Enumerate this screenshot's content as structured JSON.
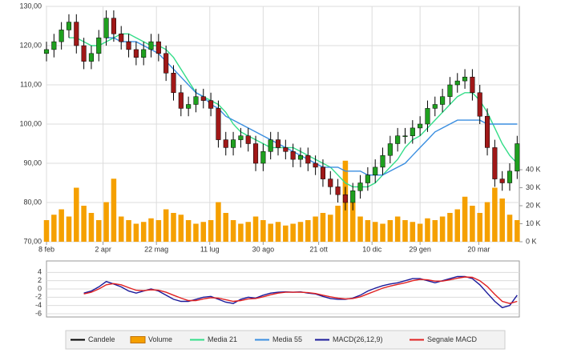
{
  "chart_data": [
    {
      "type": "candlestick",
      "x": [
        0,
        7,
        14,
        21,
        28,
        35,
        42,
        49,
        56,
        63,
        70,
        77,
        84,
        91,
        98,
        105,
        112,
        119,
        126,
        133,
        140,
        147,
        154,
        161,
        168,
        175,
        182,
        189,
        196,
        203,
        210,
        217,
        224,
        231,
        238,
        245,
        252,
        259,
        266,
        273,
        280,
        287,
        294,
        301,
        308,
        315,
        322,
        329,
        336,
        343,
        350,
        357,
        364,
        371,
        378,
        385,
        392,
        399,
        406,
        413,
        420,
        427,
        434,
        441
      ],
      "xlim": [
        0,
        443
      ],
      "xticks": [
        {
          "value": 0,
          "label": "8 feb"
        },
        {
          "value": 53,
          "label": "2 apr"
        },
        {
          "value": 103,
          "label": "22 mag"
        },
        {
          "value": 153,
          "label": "11 lug"
        },
        {
          "value": 203,
          "label": "30 ago"
        },
        {
          "value": 255,
          "label": "21 ott"
        },
        {
          "value": 305,
          "label": "10 dic"
        },
        {
          "value": 350,
          "label": "29 gen"
        },
        {
          "value": 405,
          "label": "20 mar"
        }
      ],
      "ylim": [
        70,
        130
      ],
      "yticks": [
        {
          "value": 70,
          "label": "70,00"
        },
        {
          "value": 80,
          "label": "80,00"
        },
        {
          "value": 90,
          "label": "90,00"
        },
        {
          "value": 100,
          "label": "100,00"
        },
        {
          "value": 110,
          "label": "110,00"
        },
        {
          "value": 120,
          "label": "120,00"
        },
        {
          "value": 130,
          "label": "130,00"
        }
      ],
      "y2lim": [
        0,
        130.7
      ],
      "y2ticks": [
        {
          "value": 0,
          "label": "0 K"
        },
        {
          "value": 10,
          "label": "10 K"
        },
        {
          "value": 20,
          "label": "20 K"
        },
        {
          "value": 30,
          "label": "30 K"
        },
        {
          "value": 40,
          "label": "40 K"
        }
      ],
      "grid": true,
      "series": [
        {
          "name": "Candele",
          "type": "candlestick",
          "color": "#000000",
          "up_color": "#1fa01f",
          "down_color": "#a01818",
          "open": [
            118,
            119,
            121,
            124,
            126,
            120,
            116,
            118,
            122,
            127,
            123,
            121,
            119,
            117,
            119,
            121,
            118,
            113,
            108,
            104,
            105,
            107,
            106,
            104,
            96,
            94,
            96,
            97,
            95,
            90,
            93,
            96,
            94,
            93,
            91,
            92,
            90,
            89,
            86,
            84,
            82,
            80,
            83,
            85,
            87,
            89,
            92,
            95,
            97,
            97,
            99,
            100,
            104,
            105,
            107,
            110,
            111,
            112,
            108,
            102,
            94,
            86,
            85,
            88
          ],
          "high": [
            121,
            123,
            126,
            128,
            128,
            122,
            120,
            124,
            129,
            129,
            125,
            123,
            121,
            121,
            123,
            123,
            120,
            115,
            110,
            107,
            109,
            109,
            108,
            106,
            98,
            98,
            99,
            99,
            97,
            95,
            98,
            98,
            96,
            95,
            94,
            94,
            92,
            91,
            88,
            86,
            84,
            85,
            87,
            89,
            91,
            94,
            97,
            99,
            99,
            101,
            102,
            106,
            107,
            109,
            112,
            113,
            114,
            114,
            110,
            104,
            96,
            88,
            90,
            97
          ],
          "low": [
            116,
            117,
            119,
            122,
            118,
            114,
            114,
            116,
            120,
            121,
            119,
            117,
            115,
            115,
            117,
            116,
            111,
            106,
            102,
            102,
            103,
            104,
            102,
            94,
            92,
            92,
            94,
            93,
            88,
            88,
            91,
            92,
            91,
            89,
            89,
            88,
            87,
            84,
            82,
            80,
            78,
            78,
            81,
            83,
            85,
            87,
            90,
            93,
            95,
            95,
            97,
            98,
            102,
            103,
            105,
            108,
            109,
            106,
            100,
            92,
            84,
            83,
            83,
            86
          ],
          "close": [
            119,
            121,
            124,
            126,
            120,
            116,
            118,
            122,
            127,
            123,
            121,
            119,
            117,
            119,
            121,
            118,
            113,
            108,
            104,
            105,
            107,
            106,
            104,
            96,
            94,
            96,
            97,
            95,
            90,
            93,
            96,
            94,
            93,
            91,
            92,
            90,
            89,
            86,
            84,
            82,
            80,
            83,
            85,
            87,
            89,
            92,
            95,
            97,
            97,
            99,
            100,
            104,
            105,
            107,
            110,
            111,
            112,
            108,
            102,
            94,
            86,
            85,
            88,
            95
          ]
        },
        {
          "name": "Volume",
          "type": "bar",
          "axis": "y2",
          "color": "#f5a000",
          "values": [
            12,
            15,
            18,
            14,
            30,
            20,
            16,
            12,
            22,
            35,
            14,
            12,
            10,
            11,
            13,
            12,
            18,
            16,
            15,
            12,
            10,
            11,
            12,
            22,
            16,
            12,
            10,
            11,
            14,
            12,
            10,
            11,
            9,
            10,
            11,
            12,
            14,
            16,
            15,
            20,
            45,
            22,
            14,
            12,
            11,
            10,
            12,
            14,
            12,
            11,
            10,
            13,
            12,
            14,
            16,
            18,
            25,
            20,
            16,
            22,
            30,
            24,
            15,
            12
          ]
        },
        {
          "name": "Media 21",
          "type": "line",
          "color": "#33dd88",
          "values": [
            null,
            null,
            null,
            122,
            122,
            121,
            120,
            120,
            121,
            122,
            123,
            123,
            122,
            121,
            120,
            120,
            119,
            117,
            114,
            111,
            108,
            107,
            106,
            105,
            103,
            100,
            98,
            97,
            96,
            95,
            94,
            94,
            94,
            94,
            93,
            92,
            91,
            90,
            89,
            87,
            85,
            84,
            84,
            84,
            85,
            87,
            89,
            91,
            94,
            96,
            97,
            99,
            101,
            103,
            105,
            107,
            108,
            108,
            106,
            103,
            99,
            95,
            92,
            90
          ]
        },
        {
          "name": "Media 55",
          "type": "line",
          "color": "#3a8ee0",
          "values": [
            null,
            null,
            null,
            null,
            null,
            null,
            null,
            null,
            122,
            122,
            121,
            121,
            121,
            120,
            119,
            118,
            116,
            114,
            112,
            110,
            108,
            107,
            105,
            104,
            102,
            101,
            100,
            99,
            98,
            97,
            96,
            95,
            94,
            93,
            92,
            91,
            90,
            89,
            89,
            89,
            88,
            88,
            88,
            87,
            87,
            87,
            88,
            89,
            90,
            92,
            94,
            96,
            98,
            99,
            100,
            101,
            101,
            101,
            101,
            100,
            100,
            100,
            100,
            100
          ]
        }
      ]
    },
    {
      "type": "line",
      "x": [
        0,
        7,
        14,
        21,
        28,
        35,
        42,
        49,
        56,
        63,
        70,
        77,
        84,
        91,
        98,
        105,
        112,
        119,
        126,
        133,
        140,
        147,
        154,
        161,
        168,
        175,
        182,
        189,
        196,
        203,
        210,
        217,
        224,
        231,
        238,
        245,
        252,
        259,
        266,
        273,
        280,
        287,
        294,
        301,
        308,
        315,
        322,
        329,
        336,
        343,
        350,
        357,
        364,
        371,
        378,
        385,
        392,
        399,
        406,
        413,
        420,
        427,
        434,
        441
      ],
      "xlim": [
        0,
        443
      ],
      "ylim": [
        -6,
        6
      ],
      "yticks": [
        4,
        2,
        0,
        -2,
        -4,
        -6
      ],
      "series": [
        {
          "name": "MACD(26,12,9)",
          "color": "#1a1a9a",
          "values": [
            null,
            null,
            null,
            null,
            null,
            -1,
            -0.5,
            0.5,
            1.8,
            1.2,
            0.5,
            -0.5,
            -1,
            -0.5,
            0,
            -0.5,
            -1.5,
            -2.5,
            -3,
            -3,
            -2.5,
            -2,
            -1.8,
            -2.5,
            -3.2,
            -3.5,
            -2.5,
            -2,
            -2.2,
            -1.5,
            -1,
            -0.8,
            -0.7,
            -0.8,
            -0.7,
            -1,
            -1.2,
            -1.8,
            -2.3,
            -2.5,
            -2.5,
            -2.2,
            -1.5,
            -0.5,
            0.2,
            0.8,
            1.2,
            1.5,
            2,
            2.5,
            2.5,
            2,
            1.5,
            2,
            2.5,
            3,
            3,
            2.5,
            1,
            -1,
            -3,
            -4.5,
            -4,
            -1.5
          ]
        },
        {
          "name": "Segnale MACD",
          "color": "#e02020",
          "values": [
            null,
            null,
            null,
            null,
            null,
            -1.2,
            -0.8,
            0,
            1,
            1.3,
            1,
            0.3,
            -0.3,
            -0.4,
            -0.2,
            -0.3,
            -0.8,
            -1.5,
            -2.2,
            -2.8,
            -2.8,
            -2.4,
            -2.1,
            -2.2,
            -2.6,
            -3,
            -2.8,
            -2.4,
            -2.3,
            -1.9,
            -1.4,
            -1,
            -0.8,
            -0.8,
            -0.8,
            -0.9,
            -1.1,
            -1.5,
            -1.9,
            -2.2,
            -2.4,
            -2.3,
            -1.9,
            -1.2,
            -0.5,
            0.2,
            0.7,
            1.1,
            1.5,
            2,
            2.3,
            2.2,
            1.9,
            1.9,
            2.2,
            2.6,
            2.9,
            2.8,
            2,
            0.6,
            -1.3,
            -3,
            -3.5,
            -3
          ]
        }
      ]
    }
  ]
}
